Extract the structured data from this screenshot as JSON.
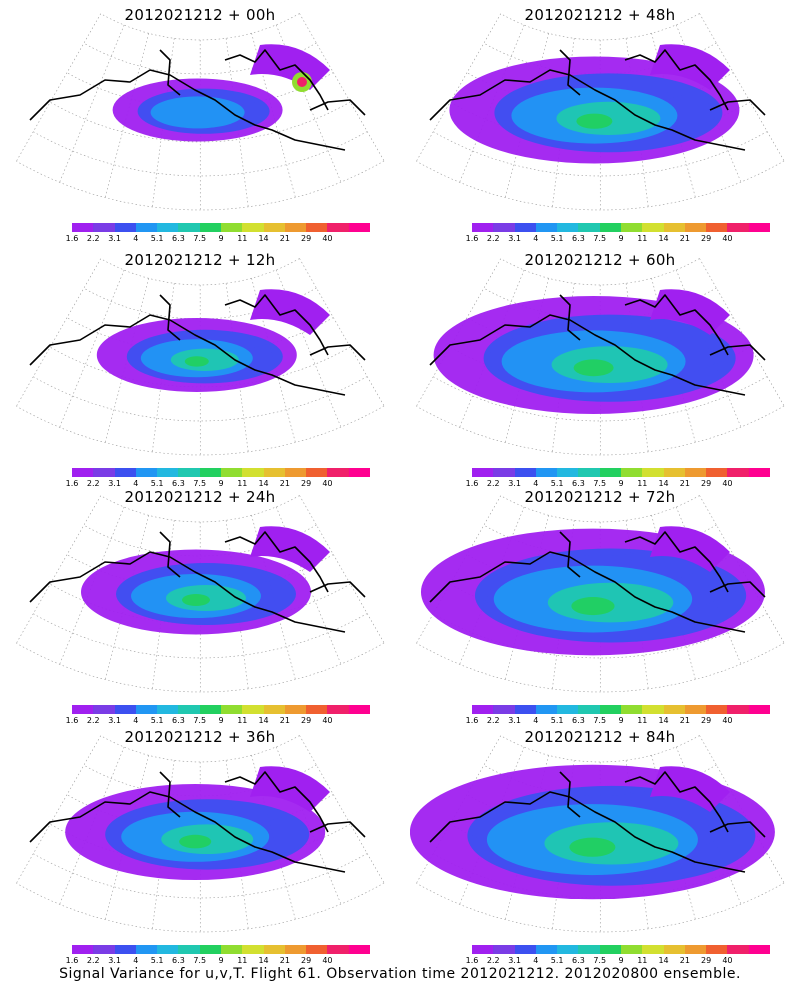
{
  "panels": [
    {
      "title": "2012021212 + 00h",
      "spread": 0.3
    },
    {
      "title": "2012021212 + 48h",
      "spread": 0.7
    },
    {
      "title": "2012021212 + 12h",
      "spread": 0.4
    },
    {
      "title": "2012021212 + 60h",
      "spread": 0.8
    },
    {
      "title": "2012021212 + 24h",
      "spread": 0.5
    },
    {
      "title": "2012021212 + 72h",
      "spread": 0.88
    },
    {
      "title": "2012021212 + 36h",
      "spread": 0.6
    },
    {
      "title": "2012021212 + 84h",
      "spread": 0.95
    }
  ],
  "colorbar": {
    "labels": [
      "1.6",
      "2.2",
      "3.1",
      "4",
      "5.1",
      "6.3",
      "7.5",
      "9",
      "11",
      "14",
      "21",
      "29",
      "40"
    ],
    "colors": [
      "#a020f0",
      "#7a3ce6",
      "#3c50f0",
      "#2196f3",
      "#22b8e0",
      "#20c8b0",
      "#22d060",
      "#90dd30",
      "#d2e030",
      "#e6c030",
      "#ee9a30",
      "#f06030",
      "#f0206a",
      "#ff0090"
    ]
  },
  "caption": "Signal Variance for u,v,T. Flight 61. Observation time 2012021212. 2012020800 ensemble."
}
